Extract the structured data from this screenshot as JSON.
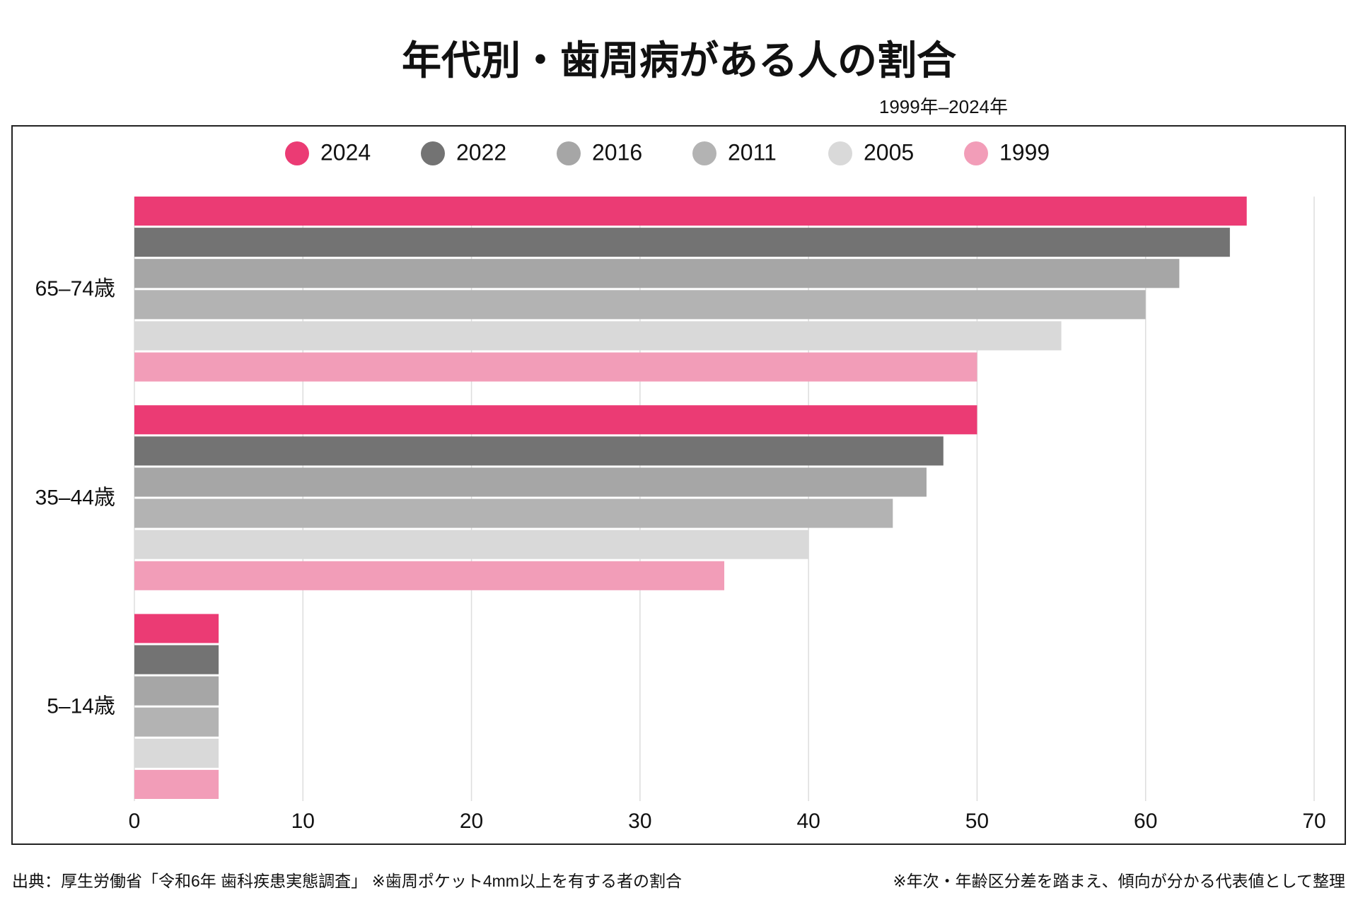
{
  "chart_data": {
    "type": "hbar",
    "title": "年代別・歯周病がある人の割合",
    "subtitle": "1999年–2024年",
    "categories": [
      "65–74歳",
      "35–44歳",
      "5–14歳"
    ],
    "series": [
      {
        "name": "2024",
        "color": "#eb3b74",
        "values": [
          66,
          50,
          5
        ]
      },
      {
        "name": "2022",
        "color": "#737373",
        "values": [
          65,
          48,
          5
        ]
      },
      {
        "name": "2016",
        "color": "#a6a6a6",
        "values": [
          62,
          47,
          5
        ]
      },
      {
        "name": "2011",
        "color": "#b3b3b3",
        "values": [
          60,
          45,
          5
        ]
      },
      {
        "name": "2005",
        "color": "#d9d9d9",
        "values": [
          55,
          40,
          5
        ]
      },
      {
        "name": "1999",
        "color": "#f29db8",
        "values": [
          50,
          35,
          5
        ]
      }
    ],
    "xlim": [
      0,
      70
    ],
    "xticks": [
      0,
      10,
      20,
      30,
      40,
      50,
      60,
      70
    ],
    "grid": true,
    "legend": "top",
    "source": "出典：厚生労働省「令和6年 歯科疾患実態調査」 ※歯周ポケット4mm以上を有する者の割合",
    "note": "※年次・年齢区分差を踏まえ、傾向が分かる代表値として整理"
  }
}
